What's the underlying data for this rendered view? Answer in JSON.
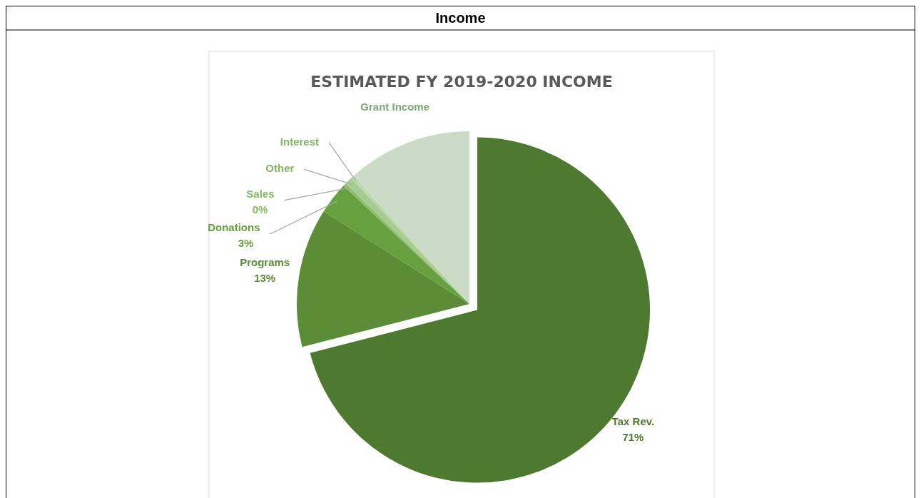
{
  "chart_data": {
    "type": "pie",
    "title": "Income",
    "subtitle": "ESTIMATED FY 2019-2020 INCOME",
    "categories": [
      "Tax Rev.",
      "Programs",
      "Donations",
      "Sales",
      "Other",
      "Interest",
      "Grant Income"
    ],
    "values": [
      71,
      13,
      3,
      0.3,
      0.7,
      0.3,
      11.7
    ],
    "colors": [
      "#4e7a2f",
      "#5a8d36",
      "#67a03f",
      "#8fbf6e",
      "#a7cc92",
      "#bcd8ad",
      "#cadcc5"
    ],
    "value_labels": [
      "71%",
      "13%",
      "3%",
      "0%",
      null,
      null,
      null
    ]
  }
}
